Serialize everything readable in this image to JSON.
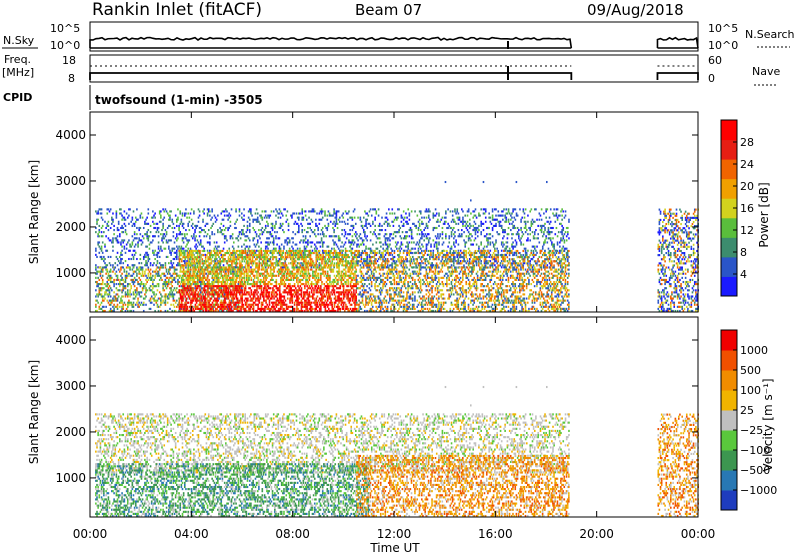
{
  "header": {
    "station": "Rankin Inlet (fitACF)",
    "beam": "Beam 07",
    "date": "09/Aug/2018"
  },
  "labels": {
    "nsky": "N.Sky",
    "freq": "Freq.",
    "freq_unit": "[MHz]",
    "cpid": "CPID",
    "nsearch": "N.Search",
    "nave": "Nave",
    "cpid_value": "twofsound (1-min) -3505",
    "x_axis_title": "Time UT"
  },
  "colors": {
    "power": [
      "#1a1aff",
      "#2a55c8",
      "#3c8c6e",
      "#5abe3c",
      "#d2d21e",
      "#f0a000",
      "#f06400",
      "#e61e14",
      "#ff0000"
    ],
    "velocity": [
      "#1e3cbe",
      "#2878b4",
      "#3c9650",
      "#5ac83c",
      "#c0c0c0",
      "#f0b400",
      "#f08c00",
      "#f05000",
      "#f00000"
    ]
  },
  "chart_data": [
    {
      "type": "line",
      "title": "N.Sky / N.Search",
      "left_ticks": [
        "10^5",
        "10^0"
      ],
      "right_ticks": [
        "10^5",
        "10^0"
      ],
      "segments": [
        [
          0.0,
          19.0
        ],
        [
          22.4,
          24.0
        ]
      ]
    },
    {
      "type": "line",
      "title": "Freq. / Nave",
      "left_ticks": [
        "18",
        "8"
      ],
      "right_ticks": [
        "60",
        "0"
      ],
      "segments": [
        [
          0.0,
          19.0
        ],
        [
          22.4,
          24.0
        ]
      ]
    },
    {
      "type": "heatmap",
      "ylabel": "Slant Range [km]",
      "xlabel": "Time UT",
      "xlim": [
        0,
        24
      ],
      "ylim": [
        150,
        4500
      ],
      "x_ticks": [
        "00:00",
        "04:00",
        "08:00",
        "12:00",
        "16:00",
        "20:00",
        "00:00"
      ],
      "y_ticks": [
        1000,
        2000,
        3000,
        4000
      ],
      "colorbar": {
        "label": "Power [dB]",
        "ticks": [
          "28",
          "24",
          "20",
          "16",
          "12",
          "8",
          "4"
        ]
      }
    },
    {
      "type": "heatmap",
      "ylabel": "Slant Range [km]",
      "xlabel": "Time UT",
      "xlim": [
        0,
        24
      ],
      "ylim": [
        150,
        4500
      ],
      "x_ticks": [
        "00:00",
        "04:00",
        "08:00",
        "12:00",
        "16:00",
        "20:00",
        "00:00"
      ],
      "y_ticks": [
        1000,
        2000,
        3000,
        4000
      ],
      "colorbar": {
        "label": "Velocity [m s⁻¹]",
        "ticks": [
          "1000",
          "500",
          "100",
          "25",
          "−25",
          "−100",
          "−500",
          "−1000"
        ]
      }
    }
  ]
}
